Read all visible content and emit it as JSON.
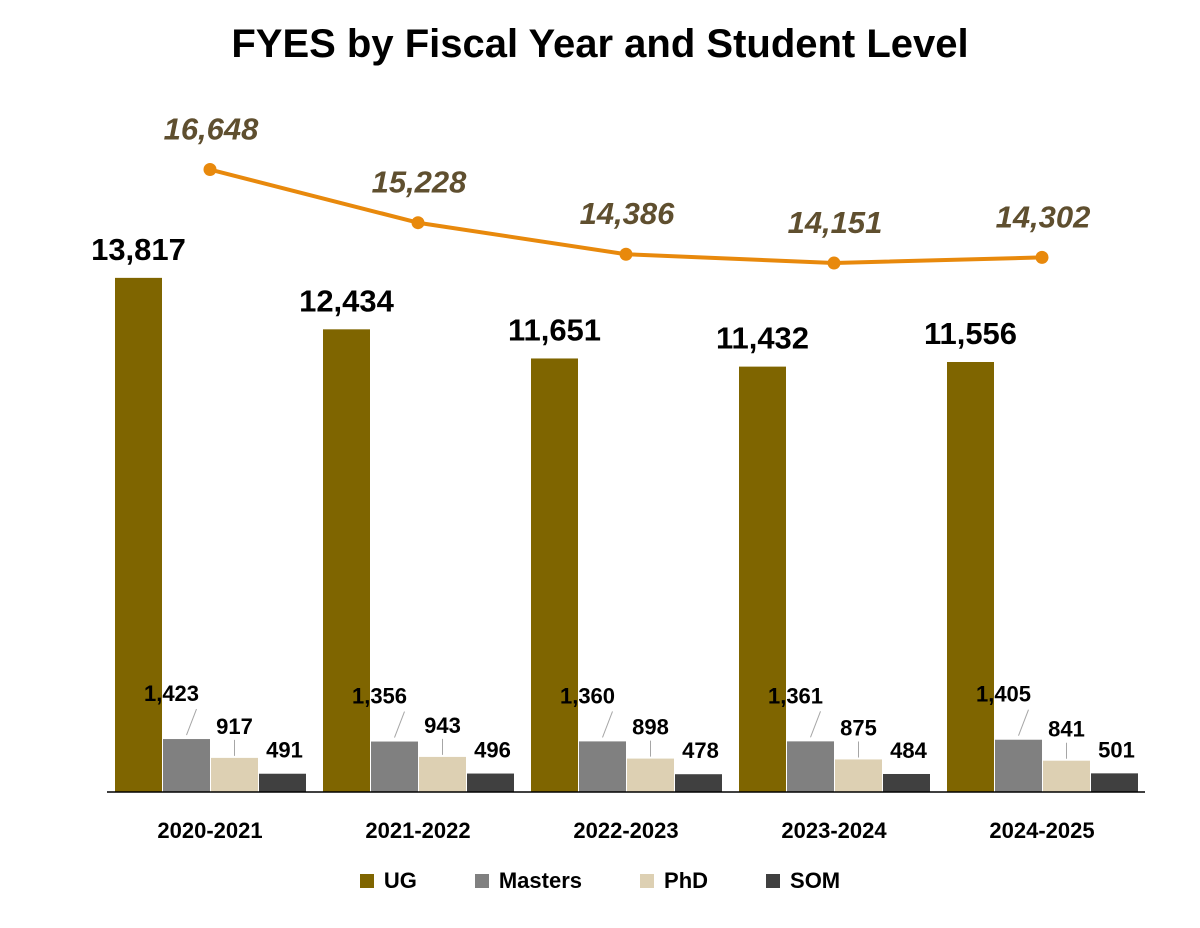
{
  "chart_data": {
    "type": "bar",
    "title": "FYES by Fiscal Year and Student Level",
    "categories": [
      "2020-2021",
      "2021-2022",
      "2022-2023",
      "2023-2024",
      "2024-2025"
    ],
    "series": [
      {
        "name": "UG",
        "color": "#7f6500",
        "values": [
          13817,
          12434,
          11651,
          11432,
          11556
        ],
        "labels": [
          "13,817",
          "12,434",
          "11,651",
          "11,432",
          "11,556"
        ]
      },
      {
        "name": "Masters",
        "color": "#808080",
        "values": [
          1423,
          1356,
          1360,
          1361,
          1405
        ],
        "labels": [
          "1,423",
          "1,356",
          "1,360",
          "1,361",
          "1,405"
        ]
      },
      {
        "name": "PhD",
        "color": "#ddd0b3",
        "values": [
          917,
          943,
          898,
          875,
          841
        ],
        "labels": [
          "917",
          "943",
          "898",
          "875",
          "841"
        ]
      },
      {
        "name": "SOM",
        "color": "#404040",
        "values": [
          491,
          496,
          478,
          484,
          501
        ],
        "labels": [
          "491",
          "496",
          "478",
          "484",
          "501"
        ]
      }
    ],
    "total_line": {
      "type": "line",
      "color": "#e8890c",
      "label_color": "#5f4f2f",
      "values": [
        16648,
        15228,
        14386,
        14151,
        14302
      ],
      "labels": [
        "16,648",
        "15,228",
        "14,386",
        "14,151",
        "14,302"
      ]
    },
    "ylim": [
      0,
      20000
    ],
    "grid": false,
    "legend_position": "bottom"
  }
}
